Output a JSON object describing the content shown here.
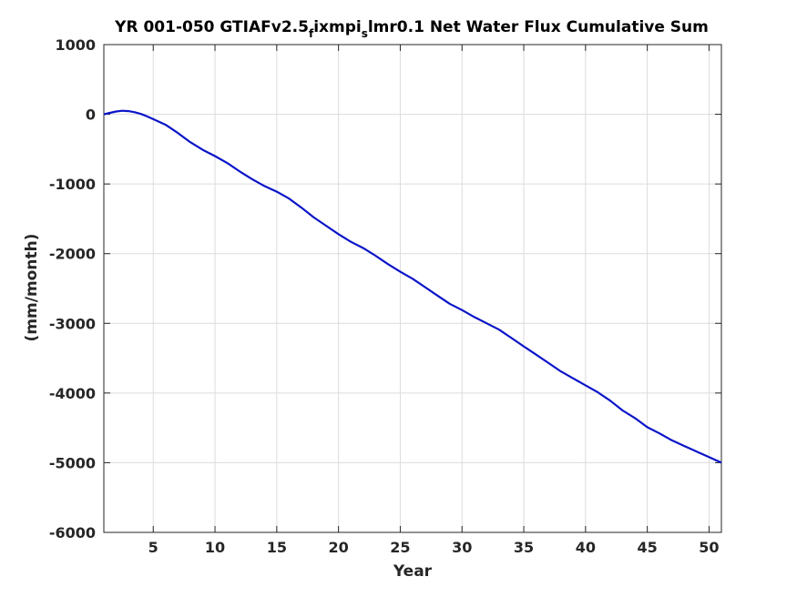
{
  "chart_data": {
    "type": "line",
    "title": {
      "parts": [
        {
          "text": "YR 001-050 GTIAFv2.5",
          "sub": false
        },
        {
          "text": "f",
          "sub": true
        },
        {
          "text": "ixmpi",
          "sub": false
        },
        {
          "text": "s",
          "sub": true
        },
        {
          "text": "lmr0.1 Net Water Flux Cumulative Sum",
          "sub": false
        }
      ]
    },
    "xlabel": "Year",
    "ylabel": "(mm/month)",
    "xlim": [
      1,
      51
    ],
    "ylim": [
      -6000,
      1000
    ],
    "xticks": [
      5,
      10,
      15,
      20,
      25,
      30,
      35,
      40,
      45,
      50
    ],
    "yticks": [
      -6000,
      -5000,
      -4000,
      -3000,
      -2000,
      -1000,
      0,
      1000
    ],
    "grid": true,
    "colors": {
      "line": "#0a14c8",
      "grid": "#dcdcdc",
      "axis": "#262626"
    },
    "series": [
      {
        "x": [
          1,
          1.5,
          2,
          2.5,
          3,
          3.5,
          4,
          4.5,
          5,
          6,
          7,
          8,
          9,
          10,
          11,
          12,
          13,
          14,
          15,
          16,
          17,
          18,
          19,
          20,
          21,
          22,
          23,
          24,
          25,
          26,
          27,
          28,
          29,
          30,
          31,
          32,
          33,
          34,
          35,
          36,
          37,
          38,
          39,
          40,
          41,
          42,
          43,
          44,
          45,
          46,
          47,
          48,
          49,
          50,
          51
        ],
        "y": [
          0,
          20,
          40,
          50,
          45,
          30,
          5,
          -30,
          -70,
          -150,
          -270,
          -400,
          -510,
          -600,
          -700,
          -820,
          -930,
          -1030,
          -1110,
          -1210,
          -1340,
          -1480,
          -1600,
          -1720,
          -1830,
          -1920,
          -2030,
          -2150,
          -2260,
          -2360,
          -2480,
          -2600,
          -2720,
          -2810,
          -2910,
          -3000,
          -3090,
          -3210,
          -3330,
          -3450,
          -3570,
          -3690,
          -3790,
          -3890,
          -3990,
          -4110,
          -4250,
          -4360,
          -4490,
          -4580,
          -4680,
          -4760,
          -4840,
          -4920,
          -5000
        ]
      }
    ]
  }
}
